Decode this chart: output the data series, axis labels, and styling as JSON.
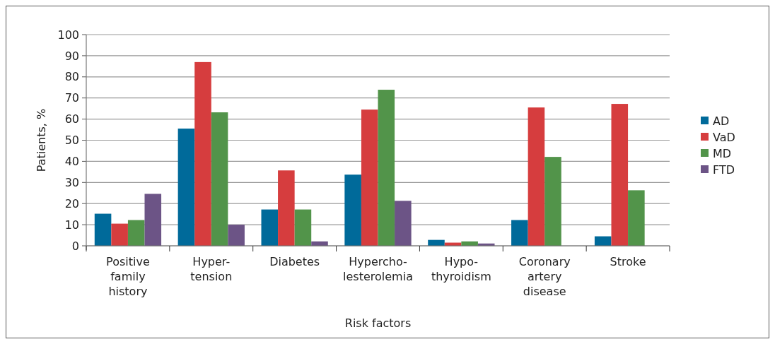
{
  "chart_data": {
    "type": "bar",
    "xlabel": "Risk factors",
    "ylabel": "Patients, %",
    "categories": [
      "Positive\nfamily\nhistory",
      "Hyper-\ntension",
      "Diabetes",
      "Hypercho-\nlesterolemia",
      "Hypo-\nthyroidism",
      "Coronary\nartery\ndisease",
      "Stroke"
    ],
    "series": [
      {
        "name": "AD",
        "color": "#006a9a",
        "values": [
          15.2,
          55.5,
          17.2,
          33.7,
          2.8,
          12.2,
          4.5
        ]
      },
      {
        "name": "VaD",
        "color": "#d63d3e",
        "values": [
          10.5,
          87,
          35.7,
          64.5,
          1.5,
          65.5,
          67.2
        ]
      },
      {
        "name": "MD",
        "color": "#52944a",
        "values": [
          12.2,
          63.2,
          17.2,
          73.9,
          2.1,
          42.1,
          26.3
        ]
      },
      {
        "name": "FTD",
        "color": "#6c5486",
        "values": [
          24.6,
          10,
          2.1,
          21.3,
          1.1,
          null,
          null
        ]
      }
    ],
    "ylim": [
      0,
      100
    ],
    "yticks": [
      0,
      10,
      20,
      30,
      40,
      50,
      60,
      70,
      80,
      90,
      100
    ],
    "grid": "y",
    "legend": "right"
  }
}
